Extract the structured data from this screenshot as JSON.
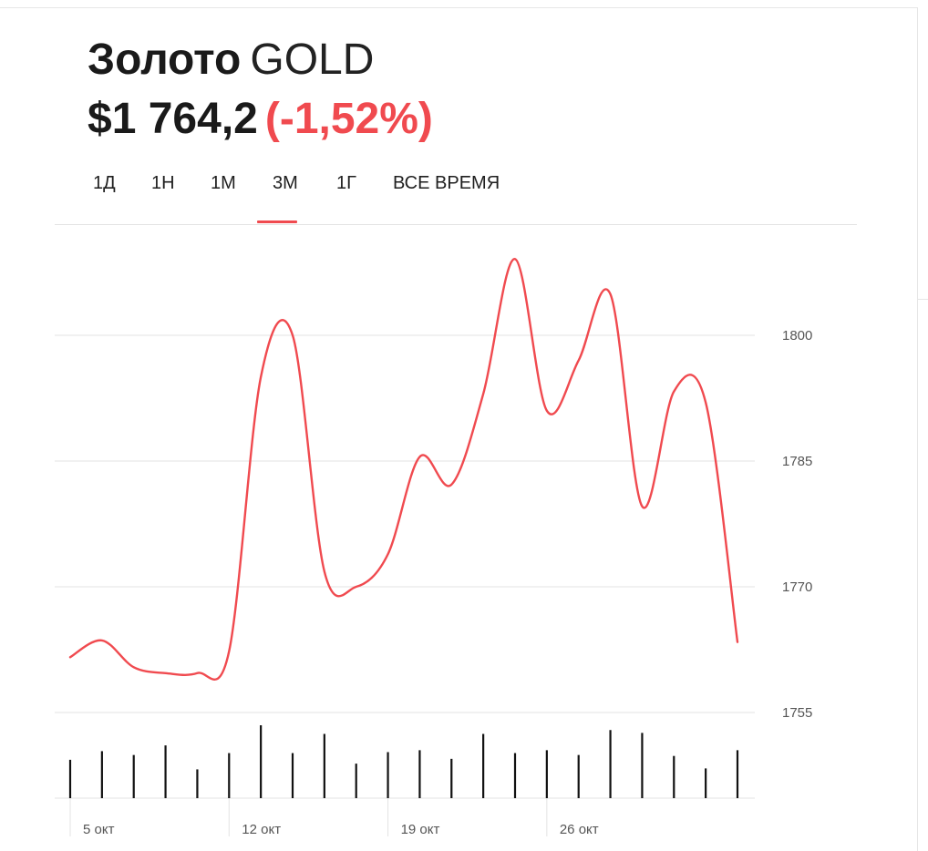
{
  "header": {
    "name": "Золото",
    "ticker": "GOLD",
    "price": "$1 764,2",
    "change": "(-1,52%)"
  },
  "tabs": [
    {
      "label": "1Д",
      "active": false
    },
    {
      "label": "1Н",
      "active": false
    },
    {
      "label": "1М",
      "active": true
    },
    {
      "label": "3М",
      "active": false
    },
    {
      "label": "1Г",
      "active": false
    },
    {
      "label": "ВСЕ ВРЕМЯ",
      "active": false
    }
  ],
  "colors": {
    "accent": "#f04a4f",
    "text": "#1a1a1a",
    "grid": "#e3e3e3",
    "volume": "#111111"
  },
  "chart_data": {
    "type": "line",
    "x": [
      1,
      2,
      3,
      4,
      5,
      6,
      7,
      8,
      9,
      10,
      11,
      12,
      13,
      14,
      15,
      16,
      17,
      18,
      19,
      20,
      21,
      22
    ],
    "series": [
      {
        "values": [
          1761.6,
          1763.6,
          1760.4,
          1759.7,
          1759.7,
          1762.3,
          1795.0,
          1800.0,
          1771.8,
          1770.0,
          1773.9,
          1785.5,
          1782.2,
          1793.0,
          1809.1,
          1791.0,
          1797.0,
          1804.9,
          1779.6,
          1793.3,
          1792.0,
          1763.4
        ]
      }
    ],
    "volume": [
      40,
      49,
      45,
      55,
      30,
      47,
      76,
      47,
      67,
      36,
      48,
      50,
      41,
      67,
      47,
      50,
      45,
      71,
      68,
      44,
      31,
      50
    ],
    "x_tick_labels": [
      {
        "x": 1,
        "label": "5 окт"
      },
      {
        "x": 6,
        "label": "12 окт"
      },
      {
        "x": 11,
        "label": "19 окт"
      },
      {
        "x": 16,
        "label": "26 окт"
      }
    ],
    "y_ticks": [
      1755,
      1770,
      1785,
      1800
    ],
    "ylim": [
      1755,
      1815
    ],
    "grid": true,
    "y_axis_side": "right",
    "title": "",
    "xlabel": "",
    "ylabel": ""
  }
}
